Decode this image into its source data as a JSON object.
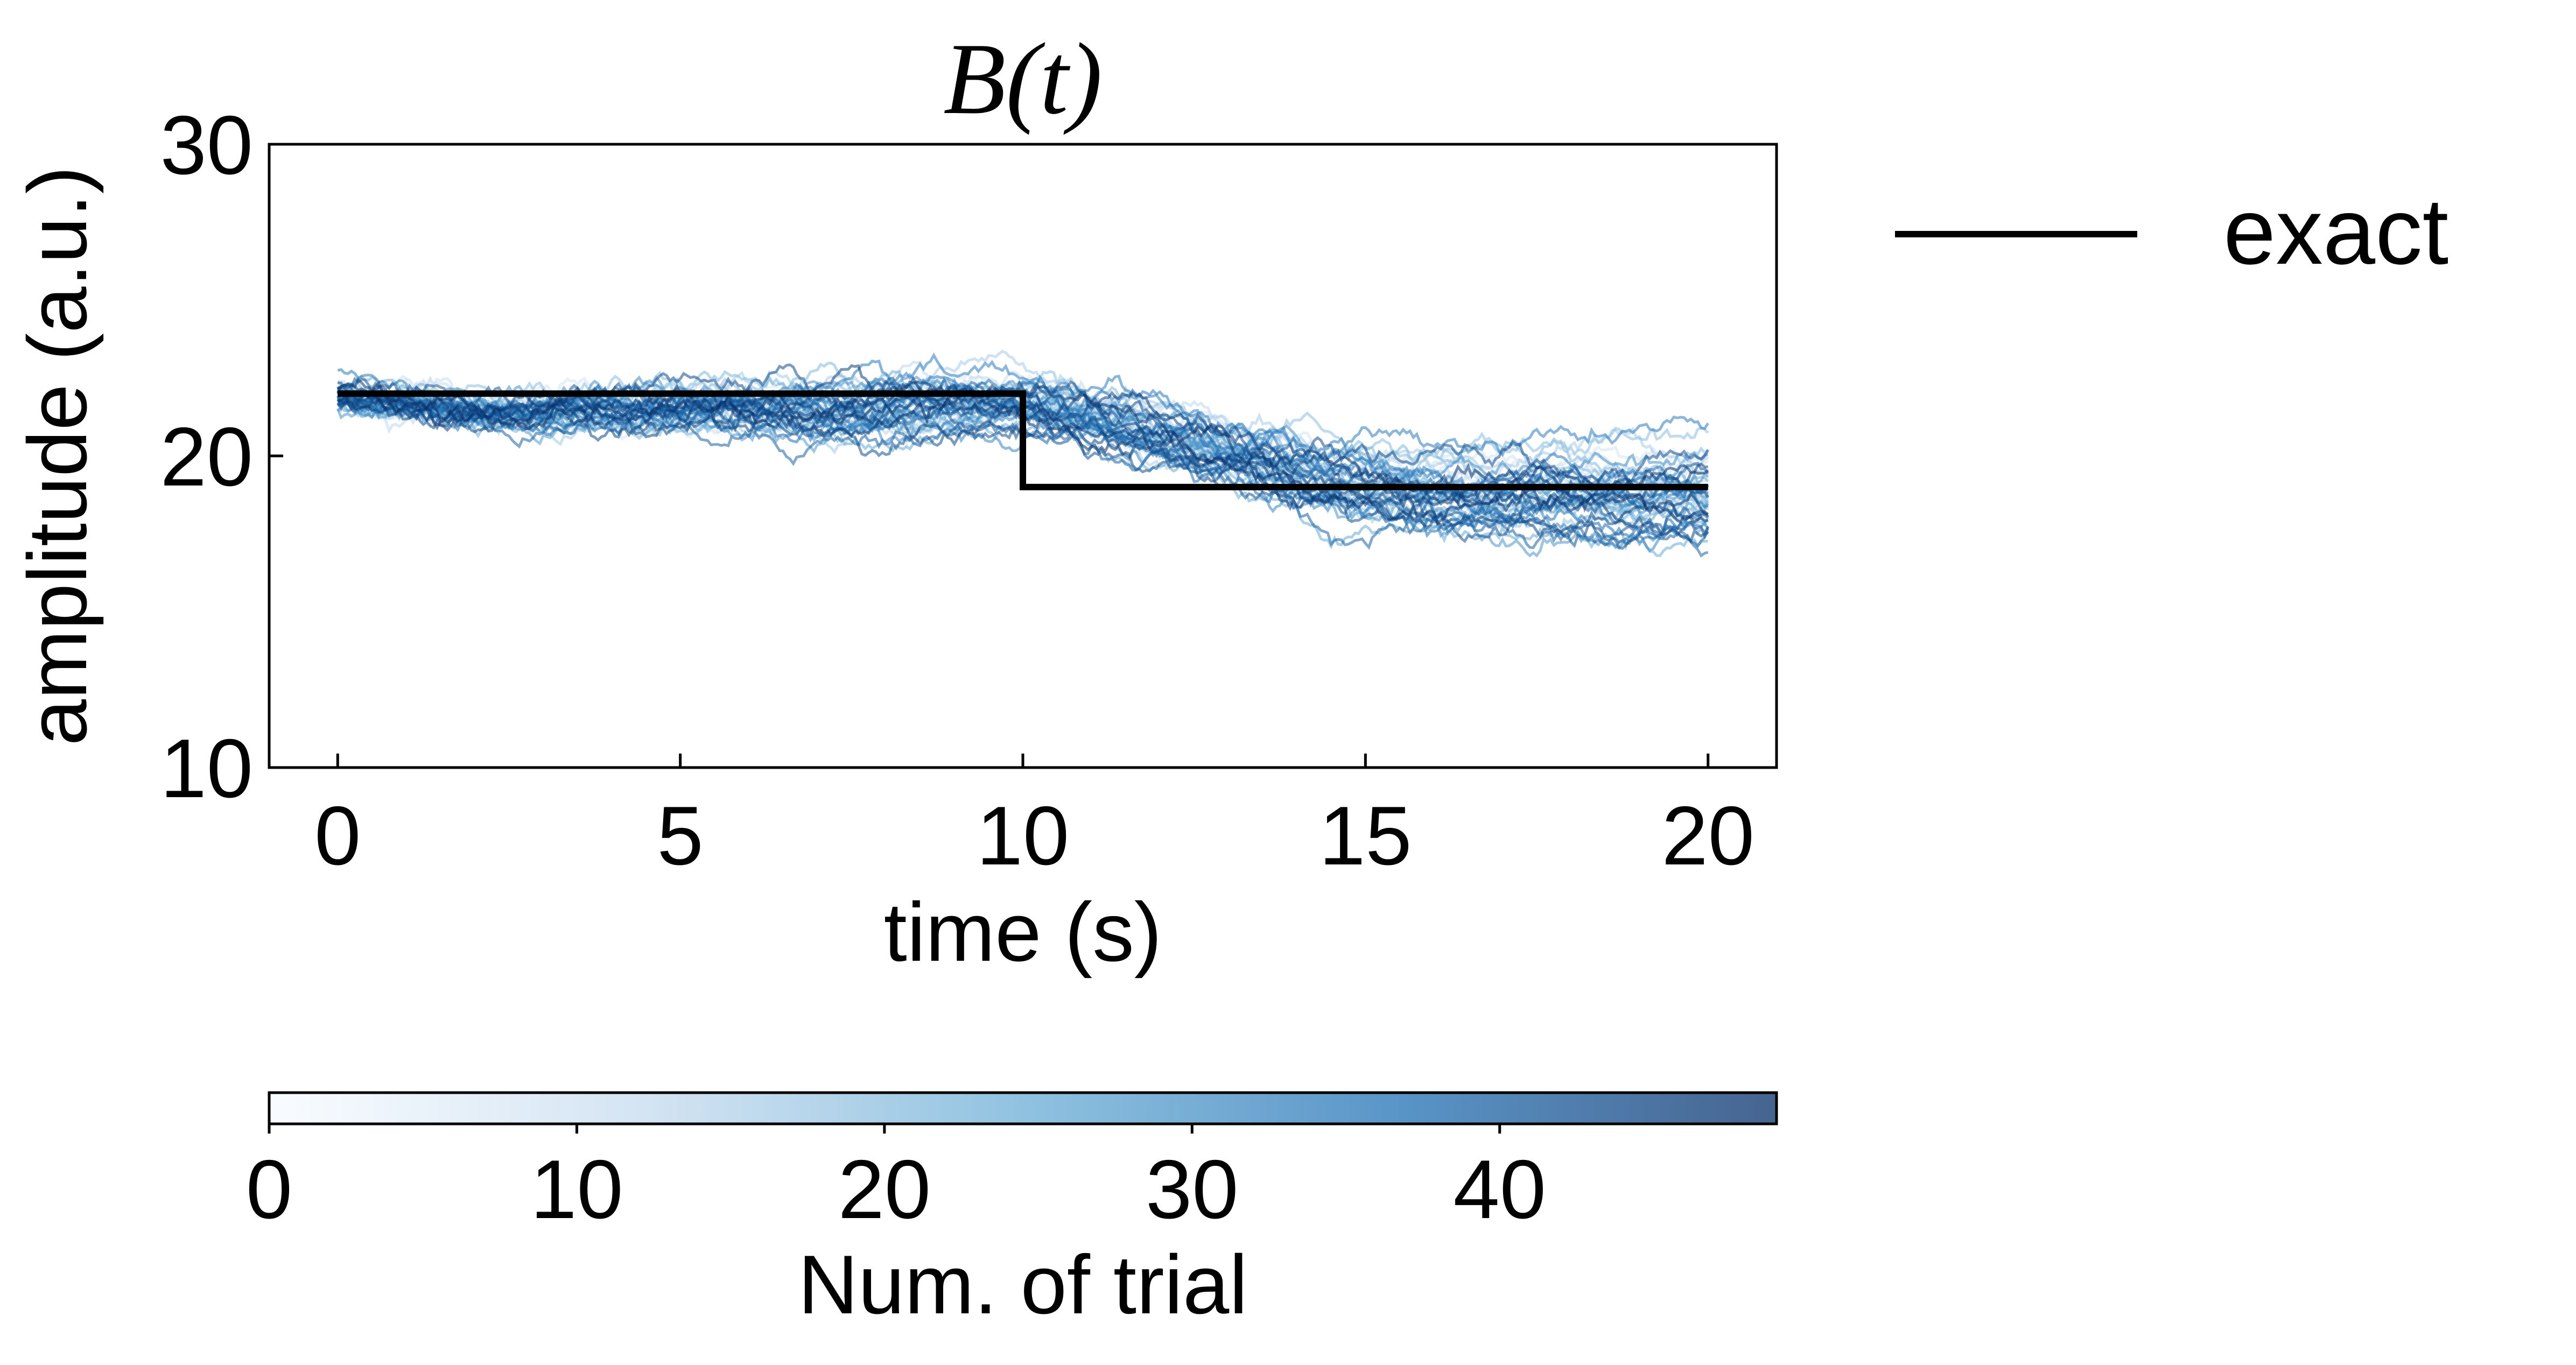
{
  "chart_data": {
    "type": "line",
    "title": "B(t)",
    "xlabel": "time (s)",
    "ylabel": "amplitude (a.u.)",
    "xlim": [
      -1,
      21
    ],
    "ylim": [
      10,
      30
    ],
    "xticks": [
      0,
      5,
      10,
      15,
      20
    ],
    "xtick_labels": [
      "0",
      "5",
      "10",
      "15",
      "20"
    ],
    "yticks": [
      10,
      20,
      30
    ],
    "ytick_labels": [
      "10",
      "20",
      "30"
    ],
    "grid": false,
    "legend": {
      "placement": "outside-top-right",
      "entries": [
        "exact"
      ]
    },
    "series": [
      {
        "name": "exact",
        "color": "#000000",
        "x": [
          0,
          10,
          10,
          20
        ],
        "y": [
          22,
          22,
          19,
          19
        ]
      }
    ],
    "trials": {
      "count": 50,
      "colormap": "Blues",
      "t_start": 0,
      "t_end": 20,
      "y_start": 22,
      "mean_before_10s": 21.5,
      "mean_after_10s": 18.8,
      "y_range_observed": [
        16.8,
        23.4
      ]
    },
    "colorbar": {
      "label": "Num. of trial",
      "min": 0,
      "max": 49,
      "ticks": [
        0,
        10,
        20,
        30,
        40
      ],
      "tick_labels": [
        "0",
        "10",
        "20",
        "30",
        "40"
      ],
      "color_low": "#f7fbff",
      "color_high": "#08306b"
    }
  }
}
